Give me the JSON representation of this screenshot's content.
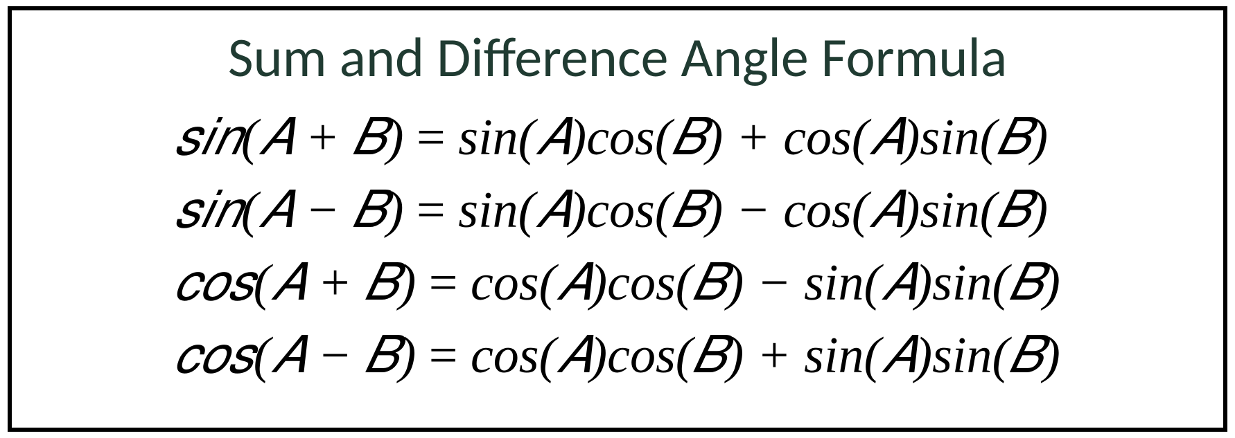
{
  "card": {
    "title": "Sum and Difference Angle Formula",
    "title_color": "#203b32",
    "title_fontsize": 80,
    "border_color": "#000000",
    "border_width": 6,
    "background_color": "#ffffff",
    "formula_fontsize": 74,
    "formula_color": "#000000",
    "formulas": [
      {
        "lhs": "𝑠𝑖𝑛(𝐴 + 𝐵)",
        "rhs": "sin(𝐴)cos(𝐵) + cos(𝐴)sin(𝐵)"
      },
      {
        "lhs": "𝑠𝑖𝑛(𝐴 − 𝐵)",
        "rhs": "sin(𝐴)cos(𝐵) − cos(𝐴)sin(𝐵)"
      },
      {
        "lhs": "𝑐𝑜𝑠(𝐴 + 𝐵)",
        "rhs": "cos(𝐴)cos(𝐵) − sin(𝐴)sin(𝐵)"
      },
      {
        "lhs": "𝑐𝑜𝑠(𝐴 − 𝐵)",
        "rhs": "cos(𝐴)cos(𝐵) + sin(𝐴)sin(𝐵)"
      }
    ]
  }
}
